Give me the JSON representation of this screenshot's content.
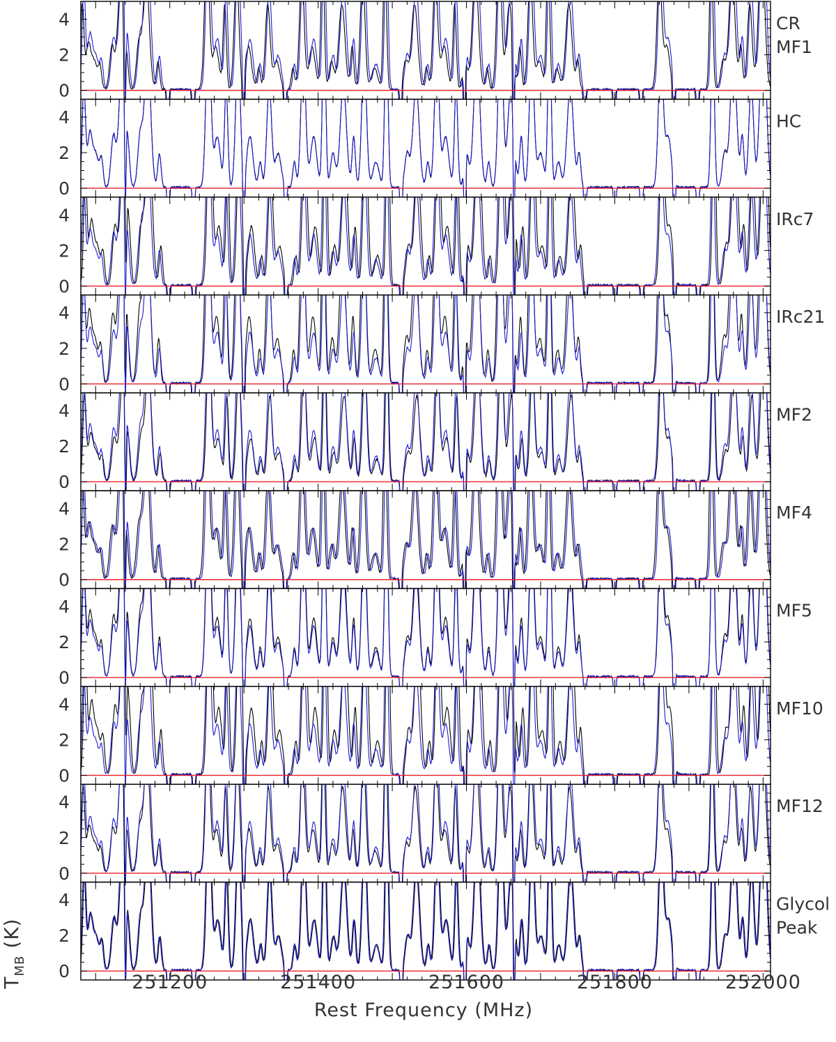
{
  "chart_data": {
    "type": "line",
    "xlabel": "Rest Frequency (MHz)",
    "ylabel": "T",
    "ylabel_sub": "MB",
    "ylabel_unit": "(K)",
    "xlim": [
      251080,
      252010
    ],
    "ylim": [
      -0.5,
      5.0
    ],
    "x_ticks": [
      251200,
      251400,
      251600,
      251800,
      252000
    ],
    "x_tick_labels": [
      "251200",
      "251400",
      "251600",
      "251800",
      "252000"
    ],
    "y_ticks": [
      0,
      2,
      4
    ],
    "y_tick_labels": [
      "0",
      "2",
      "4"
    ],
    "baseline": 0,
    "colors": {
      "observed": "#000000",
      "model": "#1a1acc",
      "baseline": "#e8202a"
    },
    "panels": [
      {
        "label_lines": [
          "CR",
          "MF1"
        ]
      },
      {
        "label_lines": [
          "HC"
        ]
      },
      {
        "label_lines": [
          "IRc7"
        ]
      },
      {
        "label_lines": [
          "IRc21"
        ]
      },
      {
        "label_lines": [
          "MF2"
        ]
      },
      {
        "label_lines": [
          "MF4"
        ]
      },
      {
        "label_lines": [
          "MF5"
        ]
      },
      {
        "label_lines": [
          "MF10"
        ]
      },
      {
        "label_lines": [
          "MF12"
        ]
      },
      {
        "label_lines": [
          "Glycol",
          "Peak"
        ]
      }
    ],
    "line_centers": [
      251084,
      251092,
      251100,
      251108,
      251124,
      251136,
      251144,
      251160,
      251170,
      251186,
      251252,
      251264,
      251276,
      251292,
      251308,
      251322,
      251334,
      251346,
      251368,
      251380,
      251394,
      251408,
      251420,
      251434,
      251448,
      251462,
      251478,
      251492,
      251520,
      251532,
      251548,
      251560,
      251572,
      251586,
      251600,
      251614,
      251630,
      251646,
      251660,
      251674,
      251688,
      251700,
      251712,
      251724,
      251740,
      251752,
      251862,
      251872,
      251932,
      251948,
      251960,
      251972,
      251984,
      252000
    ],
    "line_strengths": [
      6,
      3,
      2,
      1.5,
      3,
      8,
      1.5,
      3,
      8,
      2,
      10,
      3,
      6,
      8,
      3,
      1.5,
      6,
      2,
      1.5,
      8,
      3,
      10,
      2,
      6,
      3,
      8,
      1.5,
      10,
      2,
      6,
      1.5,
      8,
      3,
      6,
      2,
      8,
      1.5,
      10,
      6,
      3,
      8,
      2,
      10,
      1.5,
      6,
      2,
      8,
      3,
      10,
      2,
      8,
      3,
      6,
      10
    ],
    "absorption_centers": [
      251140,
      251198,
      251232,
      251300,
      251356,
      251512,
      251598,
      251664,
      251760,
      251800,
      251836,
      251880,
      251912
    ]
  }
}
